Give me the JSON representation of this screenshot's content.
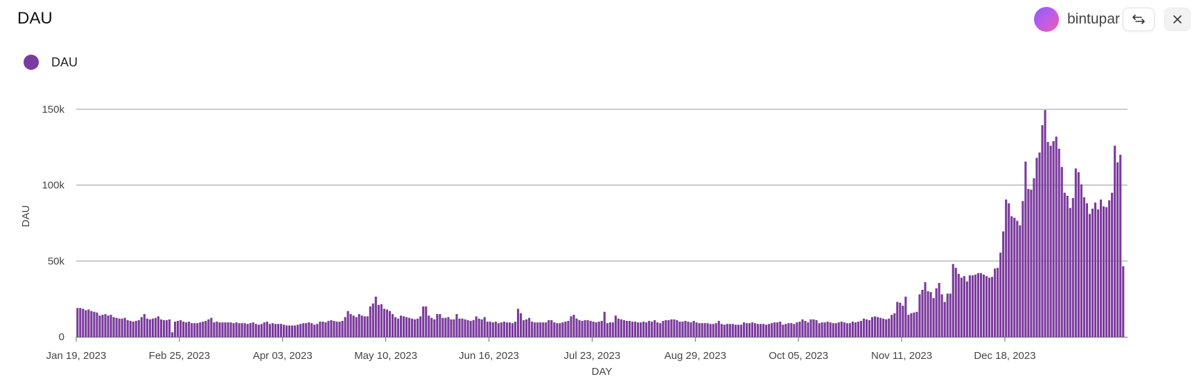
{
  "header": {
    "title": "DAU",
    "username": "bintupar",
    "swap_icon": "swap-arrows-icon",
    "close_icon": "close-icon"
  },
  "colors": {
    "bar": "#7b3a9d",
    "grid": "#9a9a9a",
    "avatar_from": "#8a5cf6",
    "avatar_to": "#f05aa6"
  },
  "chart_data": {
    "type": "bar",
    "title": "DAU",
    "xlabel": "DAY",
    "ylabel": "DAU",
    "legend": {
      "position": "top-left",
      "entries": [
        "DAU"
      ]
    },
    "grid": true,
    "x_start": "2023-01-19",
    "x_end": "2024-01-30",
    "ylim": [
      0,
      150000
    ],
    "y_ticks": [
      {
        "value": 0,
        "label": "0"
      },
      {
        "value": 50000,
        "label": "50k"
      },
      {
        "value": 100000,
        "label": "100k"
      },
      {
        "value": 150000,
        "label": "150k"
      }
    ],
    "x_ticks": [
      "Jan 19, 2023",
      "Feb 25, 2023",
      "Apr 03, 2023",
      "May 10, 2023",
      "Jun 16, 2023",
      "Jul 23, 2023",
      "Aug 29, 2023",
      "Oct 05, 2023",
      "Nov 11, 2023",
      "Dec 18, 2023"
    ],
    "series": [
      {
        "name": "DAU",
        "values": [
          19000,
          19000,
          18500,
          17500,
          18000,
          17000,
          16500,
          16000,
          14000,
          14500,
          15000,
          14000,
          14500,
          13000,
          12500,
          12000,
          12000,
          12500,
          11000,
          10500,
          10000,
          10500,
          11000,
          13000,
          15000,
          12000,
          11500,
          12000,
          12500,
          13500,
          11500,
          11000,
          11000,
          11500,
          3000,
          10000,
          10500,
          11000,
          10000,
          9500,
          10000,
          9000,
          9000,
          9000,
          9500,
          10000,
          10500,
          11500,
          12500,
          9500,
          10000,
          9500,
          9500,
          9500,
          9500,
          9500,
          9000,
          9500,
          9000,
          9000,
          9000,
          8500,
          9000,
          9500,
          8500,
          8000,
          8500,
          9500,
          10000,
          8500,
          9000,
          8500,
          8500,
          8500,
          8000,
          7500,
          7500,
          7500,
          7500,
          8000,
          8500,
          9000,
          9000,
          9500,
          9000,
          8000,
          8500,
          10000,
          10000,
          9500,
          10500,
          11000,
          10500,
          10000,
          10000,
          10500,
          13000,
          17000,
          15000,
          14000,
          13000,
          15000,
          14000,
          13500,
          13500,
          20000,
          22000,
          26500,
          21000,
          21500,
          18500,
          18000,
          17000,
          15000,
          13000,
          12000,
          14000,
          13500,
          13000,
          12500,
          12000,
          11500,
          12000,
          13500,
          20000,
          20000,
          14000,
          12500,
          11500,
          15000,
          15000,
          12500,
          12500,
          13000,
          11500,
          11500,
          15000,
          12000,
          12000,
          11500,
          11000,
          10500,
          11000,
          13500,
          12000,
          11500,
          13000,
          10000,
          10000,
          9500,
          10000,
          9000,
          9500,
          10000,
          9500,
          9500,
          9000,
          10000,
          18500,
          15500,
          11000,
          11500,
          12500,
          10000,
          9500,
          9500,
          9500,
          9500,
          9500,
          11000,
          11000,
          9500,
          9000,
          9000,
          9500,
          10000,
          10500,
          13500,
          14500,
          12000,
          11000,
          10500,
          11000,
          11000,
          10500,
          10000,
          9500,
          10000,
          10500,
          16500,
          9000,
          9500,
          9500,
          14000,
          12000,
          11500,
          11000,
          10500,
          10500,
          10000,
          10000,
          9500,
          9500,
          10000,
          9500,
          10500,
          10000,
          11000,
          9500,
          9000,
          10500,
          11000,
          11000,
          11500,
          11500,
          11000,
          10000,
          10000,
          10500,
          10000,
          9500,
          10500,
          9500,
          9000,
          9000,
          9000,
          9000,
          8500,
          8500,
          9000,
          10500,
          8500,
          8000,
          8500,
          8500,
          8500,
          8000,
          8000,
          8000,
          9500,
          9000,
          9000,
          9500,
          9000,
          8500,
          8500,
          8500,
          8000,
          8500,
          9000,
          9500,
          9500,
          10000,
          8000,
          8500,
          9000,
          9000,
          8500,
          9500,
          10000,
          11500,
          10500,
          9500,
          11500,
          11500,
          11000,
          9000,
          9500,
          9500,
          10000,
          9500,
          9000,
          9000,
          9500,
          10000,
          9500,
          9000,
          9000,
          10000,
          9500,
          10000,
          10500,
          12000,
          11500,
          11000,
          13000,
          13500,
          13000,
          12500,
          12000,
          11500,
          12000,
          14500,
          15500,
          23000,
          22500,
          20500,
          26500,
          14500,
          15500,
          16000,
          16500,
          28000,
          31000,
          36000,
          30000,
          29500,
          25500,
          32000,
          35500,
          28000,
          23000,
          28500,
          28500,
          48000,
          45500,
          41500,
          39000,
          40000,
          36500,
          40500,
          40500,
          41000,
          42000,
          42000,
          41000,
          40000,
          39000,
          39500,
          45000,
          45500,
          55500,
          69500,
          90500,
          88000,
          79500,
          78500,
          76500,
          73500,
          89500,
          115500,
          97500,
          97000,
          104500,
          118000,
          121500,
          139500,
          149500,
          128500,
          126000,
          129000,
          132000,
          124000,
          112000,
          95000,
          93000,
          85000,
          91500,
          111000,
          108500,
          100500,
          92000,
          88000,
          81000,
          84500,
          88500,
          84000,
          90500,
          86000,
          85500,
          90000,
          95000,
          126000,
          115000,
          120000,
          46500
        ]
      }
    ]
  }
}
